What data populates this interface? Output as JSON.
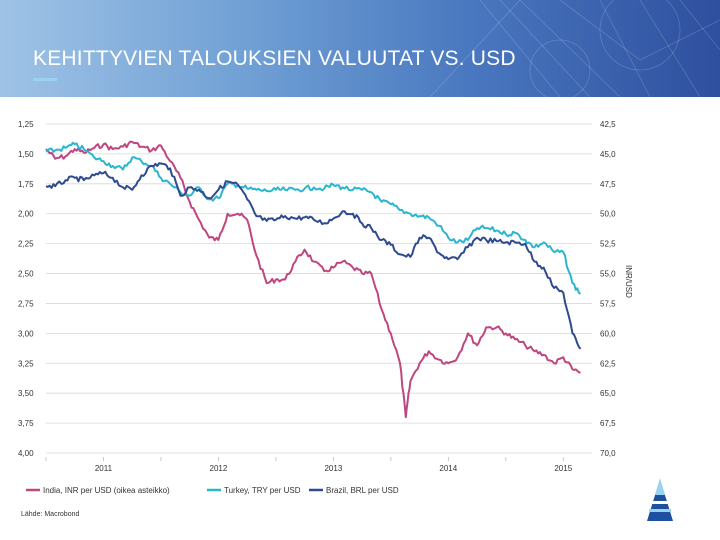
{
  "header": {
    "title": "KEHITTYVIEN TALOUKSIEN VALUUTAT VS. USD"
  },
  "source": "Lähde: Macrobond",
  "chart_data": {
    "type": "line",
    "title": "KEHITTYVIEN TALOUKSIEN VALUUTAT VS. USD",
    "x_range": [
      2010.5,
      2015.25
    ],
    "x_ticks": [
      {
        "label": "2011",
        "x": 2011.0
      },
      {
        "label": "2012",
        "x": 2012.0
      },
      {
        "label": "2013",
        "x": 2013.0
      },
      {
        "label": "2014",
        "x": 2014.0
      },
      {
        "label": "2015",
        "x": 2015.0
      }
    ],
    "left_axis": {
      "min": 1.25,
      "max": 4.0,
      "inverted": true,
      "tick_labels": [
        "1,25",
        "1,50",
        "1,75",
        "2,00",
        "2,25",
        "2,50",
        "2,75",
        "3,00",
        "3,25",
        "3,50",
        "3,75",
        "4,00"
      ]
    },
    "right_axis": {
      "label": "INR/USD",
      "min": 42.5,
      "max": 70.0,
      "inverted": true,
      "tick_labels": [
        "42,5",
        "45,0",
        "47,5",
        "50,0",
        "52,5",
        "55,0",
        "57,5",
        "60,0",
        "62,5",
        "65,0",
        "67,5",
        "70,0"
      ]
    },
    "series": [
      {
        "name": "India, INR per USD (oikea asteikko)",
        "axis": "right",
        "color": "#c0467f",
        "x": [
          2010.5,
          2010.58,
          2010.67,
          2010.75,
          2010.83,
          2010.92,
          2011.0,
          2011.08,
          2011.17,
          2011.25,
          2011.33,
          2011.42,
          2011.5,
          2011.58,
          2011.67,
          2011.75,
          2011.83,
          2011.92,
          2012.0,
          2012.08,
          2012.17,
          2012.25,
          2012.33,
          2012.42,
          2012.5,
          2012.58,
          2012.67,
          2012.75,
          2012.83,
          2012.92,
          2013.0,
          2013.08,
          2013.17,
          2013.25,
          2013.33,
          2013.42,
          2013.5,
          2013.58,
          2013.63,
          2013.67,
          2013.75,
          2013.83,
          2013.92,
          2014.0,
          2014.08,
          2014.17,
          2014.25,
          2014.33,
          2014.42,
          2014.5,
          2014.58,
          2014.67,
          2014.75,
          2014.83,
          2014.92,
          2015.0,
          2015.08,
          2015.15
        ],
        "values": [
          44.6,
          45.4,
          45.2,
          44.6,
          44.9,
          44.5,
          44.2,
          44.6,
          44.4,
          44.0,
          44.4,
          44.7,
          44.3,
          45.6,
          47.0,
          49.0,
          50.5,
          52.0,
          52.2,
          50.0,
          50.0,
          50.5,
          53.5,
          55.8,
          55.5,
          55.5,
          54.0,
          53.0,
          54.0,
          54.8,
          54.5,
          54.0,
          54.5,
          55.0,
          55.0,
          58.0,
          60.0,
          62.5,
          67.0,
          64.0,
          62.5,
          61.5,
          62.2,
          62.5,
          62.0,
          60.0,
          61.0,
          59.5,
          59.5,
          60.0,
          60.5,
          61.0,
          61.5,
          61.8,
          62.5,
          62.0,
          63.0,
          63.3
        ]
      },
      {
        "name": "Turkey, TRY per USD",
        "axis": "left",
        "color": "#2bb6d0",
        "x": [
          2010.5,
          2010.58,
          2010.67,
          2010.75,
          2010.83,
          2010.92,
          2011.0,
          2011.08,
          2011.17,
          2011.25,
          2011.33,
          2011.42,
          2011.5,
          2011.58,
          2011.67,
          2011.75,
          2011.83,
          2011.92,
          2012.0,
          2012.08,
          2012.17,
          2012.25,
          2012.33,
          2012.42,
          2012.5,
          2012.58,
          2012.67,
          2012.75,
          2012.83,
          2012.92,
          2013.0,
          2013.08,
          2013.17,
          2013.25,
          2013.33,
          2013.42,
          2013.5,
          2013.58,
          2013.67,
          2013.75,
          2013.83,
          2013.92,
          2014.0,
          2014.08,
          2014.17,
          2014.25,
          2014.33,
          2014.42,
          2014.5,
          2014.58,
          2014.67,
          2014.75,
          2014.83,
          2014.92,
          2015.0,
          2015.08,
          2015.15
        ],
        "values": [
          1.48,
          1.47,
          1.45,
          1.42,
          1.46,
          1.53,
          1.56,
          1.6,
          1.63,
          1.53,
          1.56,
          1.6,
          1.7,
          1.75,
          1.82,
          1.85,
          1.78,
          1.88,
          1.87,
          1.75,
          1.76,
          1.79,
          1.8,
          1.81,
          1.8,
          1.8,
          1.8,
          1.79,
          1.78,
          1.79,
          1.76,
          1.78,
          1.8,
          1.8,
          1.82,
          1.9,
          1.92,
          1.97,
          2.0,
          2.02,
          2.03,
          2.1,
          2.2,
          2.24,
          2.22,
          2.12,
          2.12,
          2.14,
          2.17,
          2.16,
          2.22,
          2.28,
          2.24,
          2.32,
          2.32,
          2.58,
          2.67
        ]
      },
      {
        "name": "Brazil, BRL per USD",
        "axis": "left",
        "color": "#2e4b8f",
        "x": [
          2010.5,
          2010.58,
          2010.67,
          2010.75,
          2010.83,
          2010.92,
          2011.0,
          2011.08,
          2011.17,
          2011.25,
          2011.33,
          2011.42,
          2011.5,
          2011.58,
          2011.67,
          2011.75,
          2011.83,
          2011.92,
          2012.0,
          2012.08,
          2012.17,
          2012.25,
          2012.33,
          2012.42,
          2012.5,
          2012.58,
          2012.67,
          2012.75,
          2012.83,
          2012.92,
          2013.0,
          2013.08,
          2013.17,
          2013.25,
          2013.33,
          2013.42,
          2013.5,
          2013.58,
          2013.67,
          2013.75,
          2013.83,
          2013.92,
          2014.0,
          2014.08,
          2014.17,
          2014.25,
          2014.33,
          2014.42,
          2014.5,
          2014.58,
          2014.67,
          2014.75,
          2014.83,
          2014.92,
          2015.0,
          2015.08,
          2015.15
        ],
        "values": [
          1.77,
          1.77,
          1.72,
          1.7,
          1.72,
          1.68,
          1.66,
          1.7,
          1.78,
          1.8,
          1.68,
          1.6,
          1.58,
          1.62,
          1.85,
          1.78,
          1.8,
          1.87,
          1.8,
          1.73,
          1.76,
          1.88,
          2.02,
          2.06,
          2.05,
          2.02,
          2.04,
          2.03,
          2.05,
          2.08,
          2.04,
          1.98,
          2.0,
          2.08,
          2.12,
          2.22,
          2.26,
          2.34,
          2.36,
          2.2,
          2.2,
          2.33,
          2.38,
          2.38,
          2.28,
          2.2,
          2.22,
          2.23,
          2.24,
          2.24,
          2.25,
          2.4,
          2.45,
          2.62,
          2.66,
          3.0,
          3.13
        ]
      }
    ],
    "legend": [
      "India, INR per USD (oikea asteikko)",
      "Turkey, TRY per USD",
      "Brazil, BRL per USD"
    ],
    "legend_position": "bottom"
  }
}
